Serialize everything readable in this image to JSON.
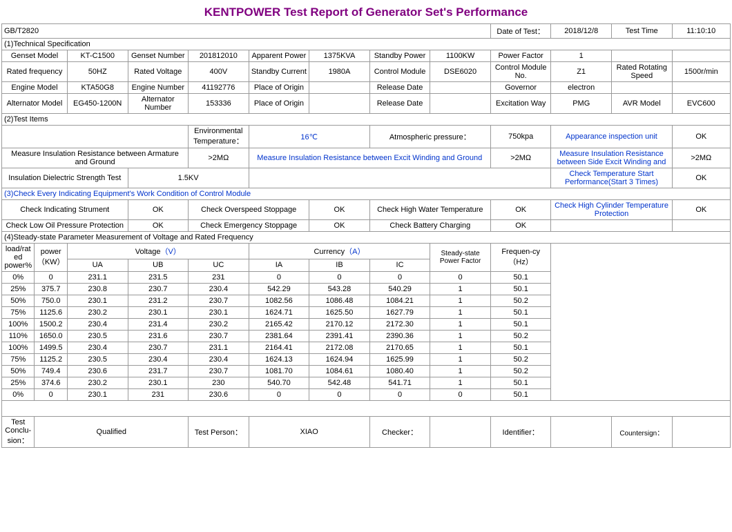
{
  "title": "KENTPOWER Test Report of Generator Set's Performance",
  "header": {
    "std": "GB/T2820",
    "date_lbl": "Date of Test：",
    "date": "2018/12/8",
    "time_lbl": "Test Time",
    "time": "11:10:10"
  },
  "s1": {
    "hdr": "(1)Technical Specification",
    "r1": [
      "Genset Model",
      "KT-C1500",
      "Genset Number",
      "201812010",
      "Apparent Power",
      "1375KVA",
      "Standby Power",
      "1100KW",
      "Power Factor",
      "1",
      "",
      ""
    ],
    "r2": [
      "Rated frequency",
      "50HZ",
      "Rated Voltage",
      "400V",
      "Standby Current",
      "1980A",
      "Control Module",
      "DSE6020",
      "Control Module No.",
      "Z1",
      "Rated Rotating Speed",
      "1500r/min"
    ],
    "r3": [
      "Engine Model",
      "KTA50G8",
      "Engine Number",
      "41192776",
      "Place of Origin",
      "",
      "Release Date",
      "",
      "Governor",
      "electron",
      "",
      ""
    ],
    "r4": [
      "Alternator Model",
      "EG450-1200N",
      "Alternator Number",
      "153336",
      "Place of Origin",
      "",
      "Release Date",
      "",
      "Excitation Way",
      "PMG",
      "AVR Model",
      "EVC600"
    ]
  },
  "s2": {
    "hdr": "(2)Test Items",
    "r1_a": "Environmental Temperature：",
    "r1_b": "16℃",
    "r1_c": "Atmospheric pressure：",
    "r1_d": "750kpa",
    "r1_e": "Appearance inspection unit",
    "r1_f": "OK",
    "r2_a": "Measure Insulation Resistance between Armature and Ground",
    "r2_b": ">2MΩ",
    "r2_c": "Measure Insulation Resistance between Excit Winding and Ground",
    "r2_d": ">2MΩ",
    "r2_e": "Measure Insulation Resistance between Side Excit Winding and",
    "r2_f": ">2MΩ",
    "r3_a": "Insulation Dielectric Strength Test",
    "r3_b": "1.5KV",
    "r3_e": "Check Temperature Start Performance(Start 3 Times)",
    "r3_f": "OK"
  },
  "s3": {
    "hdr": "(3)Check Every Indicating Equipment's Work Condition of Control Module",
    "r1": [
      "Check Indicating Strument",
      "OK",
      "Check Overspeed Stoppage",
      "OK",
      "Check High Water Temperature",
      "OK",
      "Check High Cylinder Temperature Protection",
      "OK"
    ],
    "r2": [
      "Check Low Oil Pressure Protection",
      "OK",
      "Check Emergency Stoppage",
      "OK",
      "Check Battery Charging",
      "OK",
      "",
      ""
    ]
  },
  "s4": {
    "hdr": "(4)Steady-state Parameter Measurement of Voltage and Rated Frequency",
    "cols_top": {
      "load": "load/rated power%",
      "power": "power（KW）",
      "voltage": "Voltage（V）",
      "currency": "Currency（A）",
      "spf": "Steady-state Power Factor",
      "freq": "Frequen-cy（Hz）"
    },
    "cols_sub": [
      "UA",
      "UB",
      "UC",
      "IA",
      "IB",
      "IC"
    ],
    "rows": [
      [
        "0%",
        "0",
        "231.1",
        "231.5",
        "231",
        "0",
        "0",
        "0",
        "0",
        "50.1"
      ],
      [
        "25%",
        "375.7",
        "230.8",
        "230.7",
        "230.4",
        "542.29",
        "543.28",
        "540.29",
        "1",
        "50.1"
      ],
      [
        "50%",
        "750.0",
        "230.1",
        "231.2",
        "230.7",
        "1082.56",
        "1086.48",
        "1084.21",
        "1",
        "50.2"
      ],
      [
        "75%",
        "1125.6",
        "230.2",
        "230.1",
        "230.1",
        "1624.71",
        "1625.50",
        "1627.79",
        "1",
        "50.1"
      ],
      [
        "100%",
        "1500.2",
        "230.4",
        "231.4",
        "230.2",
        "2165.42",
        "2170.12",
        "2172.30",
        "1",
        "50.1"
      ],
      [
        "110%",
        "1650.0",
        "230.5",
        "231.6",
        "230.7",
        "2381.64",
        "2391.41",
        "2390.36",
        "1",
        "50.2"
      ],
      [
        "100%",
        "1499.5",
        "230.4",
        "230.7",
        "231.1",
        "2164.41",
        "2172.08",
        "2170.65",
        "1",
        "50.1"
      ],
      [
        "75%",
        "1125.2",
        "230.5",
        "230.4",
        "230.4",
        "1624.13",
        "1624.94",
        "1625.99",
        "1",
        "50.2"
      ],
      [
        "50%",
        "749.4",
        "230.6",
        "231.7",
        "230.7",
        "1081.70",
        "1084.61",
        "1080.40",
        "1",
        "50.2"
      ],
      [
        "25%",
        "374.6",
        "230.2",
        "230.1",
        "230",
        "540.70",
        "542.48",
        "541.71",
        "1",
        "50.1"
      ],
      [
        "0%",
        "0",
        "230.1",
        "231",
        "230.6",
        "0",
        "0",
        "0",
        "0",
        "50.1"
      ]
    ]
  },
  "footer": {
    "c1": "Test Conclu-sion：",
    "v1": "Qualified",
    "c2": "Test Person：",
    "v2": "XIAO",
    "c3": "Checker：",
    "v3": "",
    "c4": "Identifier：",
    "v4": "",
    "c5": "Countersign：",
    "v5": ""
  },
  "colors": {
    "title": "#800080",
    "link": "#0033cc",
    "border": "#999999"
  }
}
